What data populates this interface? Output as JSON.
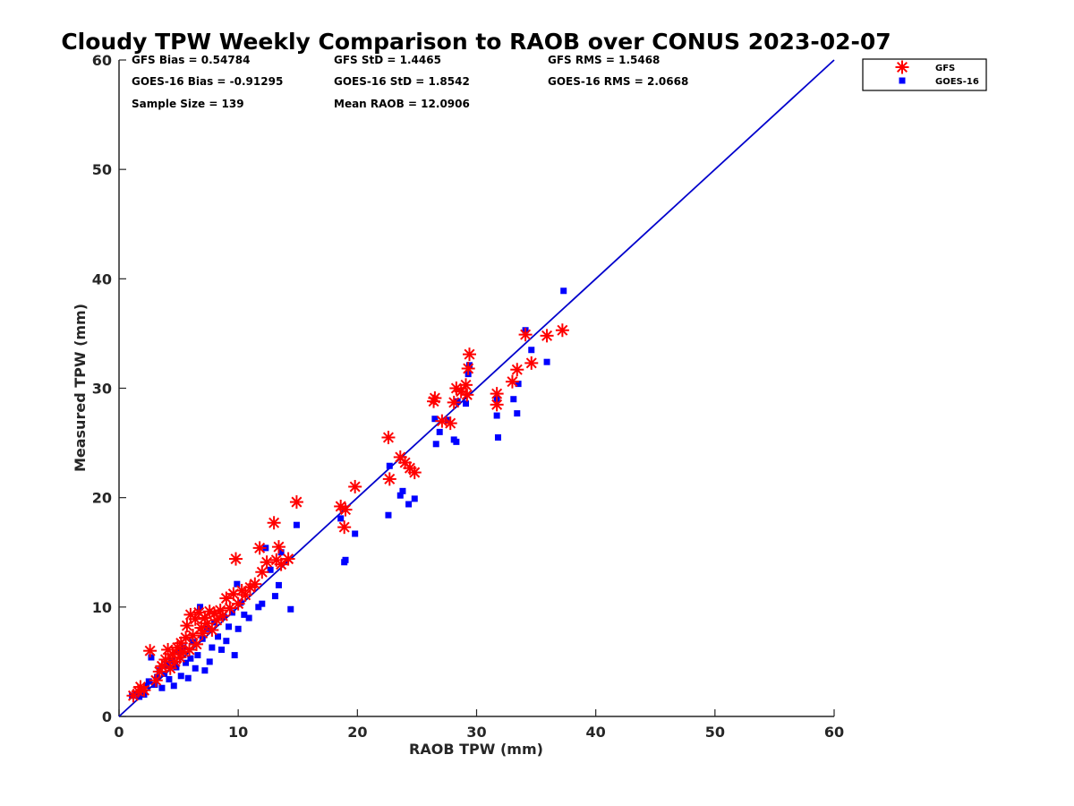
{
  "chart_data": {
    "type": "scatter",
    "title": "Cloudy TPW Weekly Comparison to RAOB over CONUS 2023-02-07",
    "xlabel": "RAOB TPW (mm)",
    "ylabel": "Measured TPW (mm)",
    "xlim": [
      0,
      60
    ],
    "ylim": [
      0,
      60
    ],
    "xticks": [
      "0",
      "10",
      "20",
      "30",
      "40",
      "50",
      "60"
    ],
    "yticks": [
      "0",
      "10",
      "20",
      "30",
      "40",
      "50",
      "60"
    ],
    "grid": false,
    "legend_position": "top-right outside",
    "reference_line": {
      "type": "one-to-one",
      "color": "#0000cc"
    },
    "stats": {
      "gfs_bias": "GFS Bias = 0.54784",
      "gfs_std": "GFS StD = 1.4465",
      "gfs_rms": "GFS RMS = 1.5468",
      "goes_bias": "GOES-16 Bias = -0.91295",
      "goes_std": "GOES-16 StD = 1.8542",
      "goes_rms": "GOES-16 RMS = 2.0668",
      "sample_size": "Sample Size = 139",
      "mean_raob": "Mean RAOB = 12.0906"
    },
    "series": [
      {
        "name": "GFS",
        "marker": "asterisk",
        "color": "#ff0000",
        "points": [
          [
            1.2,
            1.9
          ],
          [
            1.6,
            2.3
          ],
          [
            1.8,
            2.7
          ],
          [
            2.1,
            2.4
          ],
          [
            2.6,
            6.0
          ],
          [
            3.1,
            3.3
          ],
          [
            3.4,
            4.1
          ],
          [
            3.6,
            4.6
          ],
          [
            3.9,
            5.2
          ],
          [
            4.1,
            6.1
          ],
          [
            4.3,
            4.4
          ],
          [
            4.5,
            5.7
          ],
          [
            4.7,
            5.0
          ],
          [
            4.9,
            6.3
          ],
          [
            5.1,
            5.4
          ],
          [
            5.2,
            6.7
          ],
          [
            5.4,
            5.9
          ],
          [
            5.6,
            7.2
          ],
          [
            5.7,
            8.3
          ],
          [
            5.9,
            6.1
          ],
          [
            6.0,
            9.3
          ],
          [
            6.2,
            7.4
          ],
          [
            6.4,
            8.9
          ],
          [
            6.5,
            6.6
          ],
          [
            6.7,
            9.5
          ],
          [
            6.9,
            8.1
          ],
          [
            7.0,
            7.6
          ],
          [
            7.2,
            9.0
          ],
          [
            7.4,
            8.5
          ],
          [
            7.6,
            9.6
          ],
          [
            7.8,
            7.9
          ],
          [
            8.0,
            9.4
          ],
          [
            8.2,
            8.8
          ],
          [
            8.5,
            9.7
          ],
          [
            8.7,
            9.2
          ],
          [
            9.0,
            10.8
          ],
          [
            9.3,
            9.9
          ],
          [
            9.6,
            11.2
          ],
          [
            9.8,
            14.4
          ],
          [
            10.0,
            10.3
          ],
          [
            10.3,
            11.5
          ],
          [
            10.6,
            11.1
          ],
          [
            11.0,
            11.8
          ],
          [
            11.4,
            12.1
          ],
          [
            11.8,
            15.4
          ],
          [
            12.0,
            13.2
          ],
          [
            12.4,
            14.1
          ],
          [
            13.0,
            17.7
          ],
          [
            13.2,
            14.3
          ],
          [
            13.4,
            15.5
          ],
          [
            13.6,
            13.9
          ],
          [
            14.2,
            14.4
          ],
          [
            14.9,
            19.6
          ],
          [
            18.6,
            19.2
          ],
          [
            18.9,
            17.3
          ],
          [
            19.0,
            18.9
          ],
          [
            19.8,
            21.0
          ],
          [
            22.6,
            25.5
          ],
          [
            22.7,
            21.7
          ],
          [
            23.6,
            23.7
          ],
          [
            24.0,
            23.2
          ],
          [
            24.4,
            22.7
          ],
          [
            24.8,
            22.3
          ],
          [
            26.4,
            28.8
          ],
          [
            26.5,
            29.1
          ],
          [
            27.1,
            27.0
          ],
          [
            27.8,
            26.8
          ],
          [
            28.1,
            28.7
          ],
          [
            28.3,
            30.0
          ],
          [
            28.7,
            29.7
          ],
          [
            29.1,
            30.3
          ],
          [
            29.2,
            29.4
          ],
          [
            29.3,
            31.8
          ],
          [
            29.4,
            33.1
          ],
          [
            31.7,
            29.5
          ],
          [
            31.7,
            28.5
          ],
          [
            33.0,
            30.6
          ],
          [
            33.4,
            31.7
          ],
          [
            34.1,
            34.9
          ],
          [
            34.6,
            32.3
          ],
          [
            35.9,
            34.8
          ],
          [
            37.2,
            35.3
          ]
        ]
      },
      {
        "name": "GOES-16",
        "marker": "square",
        "color": "#0000ff",
        "points": [
          [
            1.1,
            1.9
          ],
          [
            1.4,
            2.1
          ],
          [
            1.7,
            1.8
          ],
          [
            1.9,
            2.3
          ],
          [
            2.1,
            2.0
          ],
          [
            2.3,
            2.8
          ],
          [
            2.5,
            3.2
          ],
          [
            2.7,
            5.4
          ],
          [
            3.0,
            2.9
          ],
          [
            3.2,
            3.6
          ],
          [
            3.4,
            4.2
          ],
          [
            3.6,
            2.6
          ],
          [
            3.8,
            3.9
          ],
          [
            4.0,
            4.7
          ],
          [
            4.2,
            3.4
          ],
          [
            4.4,
            5.1
          ],
          [
            4.6,
            2.8
          ],
          [
            4.8,
            4.5
          ],
          [
            5.0,
            5.9
          ],
          [
            5.2,
            3.7
          ],
          [
            5.4,
            6.3
          ],
          [
            5.6,
            4.9
          ],
          [
            5.8,
            3.5
          ],
          [
            6.0,
            5.3
          ],
          [
            6.2,
            6.8
          ],
          [
            6.4,
            4.4
          ],
          [
            6.6,
            5.6
          ],
          [
            6.8,
            10.0
          ],
          [
            7.0,
            7.1
          ],
          [
            7.2,
            4.2
          ],
          [
            7.4,
            8.0
          ],
          [
            7.6,
            5.0
          ],
          [
            7.8,
            6.3
          ],
          [
            8.0,
            8.6
          ],
          [
            8.3,
            7.3
          ],
          [
            8.6,
            6.1
          ],
          [
            8.8,
            9.1
          ],
          [
            9.0,
            6.9
          ],
          [
            9.2,
            8.2
          ],
          [
            9.5,
            9.5
          ],
          [
            9.7,
            5.6
          ],
          [
            9.9,
            12.1
          ],
          [
            10.0,
            8.0
          ],
          [
            10.2,
            10.4
          ],
          [
            10.5,
            9.3
          ],
          [
            10.9,
            9.0
          ],
          [
            11.7,
            10.0
          ],
          [
            12.0,
            10.3
          ],
          [
            12.3,
            15.4
          ],
          [
            12.7,
            13.4
          ],
          [
            13.1,
            11.0
          ],
          [
            13.4,
            12.0
          ],
          [
            13.6,
            15.0
          ],
          [
            14.4,
            9.8
          ],
          [
            14.9,
            17.5
          ],
          [
            18.6,
            18.1
          ],
          [
            18.9,
            14.1
          ],
          [
            19.0,
            14.3
          ],
          [
            19.8,
            16.7
          ],
          [
            22.6,
            18.4
          ],
          [
            22.7,
            22.9
          ],
          [
            23.6,
            20.2
          ],
          [
            23.8,
            20.6
          ],
          [
            24.3,
            19.4
          ],
          [
            24.8,
            19.9
          ],
          [
            26.5,
            27.2
          ],
          [
            26.6,
            24.9
          ],
          [
            26.9,
            26.0
          ],
          [
            27.6,
            27.1
          ],
          [
            28.1,
            25.3
          ],
          [
            28.3,
            25.1
          ],
          [
            28.4,
            28.8
          ],
          [
            29.1,
            28.6
          ],
          [
            29.3,
            31.3
          ],
          [
            29.4,
            32.1
          ],
          [
            31.7,
            29.0
          ],
          [
            31.7,
            27.5
          ],
          [
            31.8,
            25.5
          ],
          [
            33.1,
            29.0
          ],
          [
            33.4,
            27.7
          ],
          [
            33.5,
            30.4
          ],
          [
            34.1,
            35.3
          ],
          [
            34.6,
            33.5
          ],
          [
            35.9,
            32.4
          ],
          [
            37.3,
            38.9
          ]
        ]
      }
    ]
  }
}
